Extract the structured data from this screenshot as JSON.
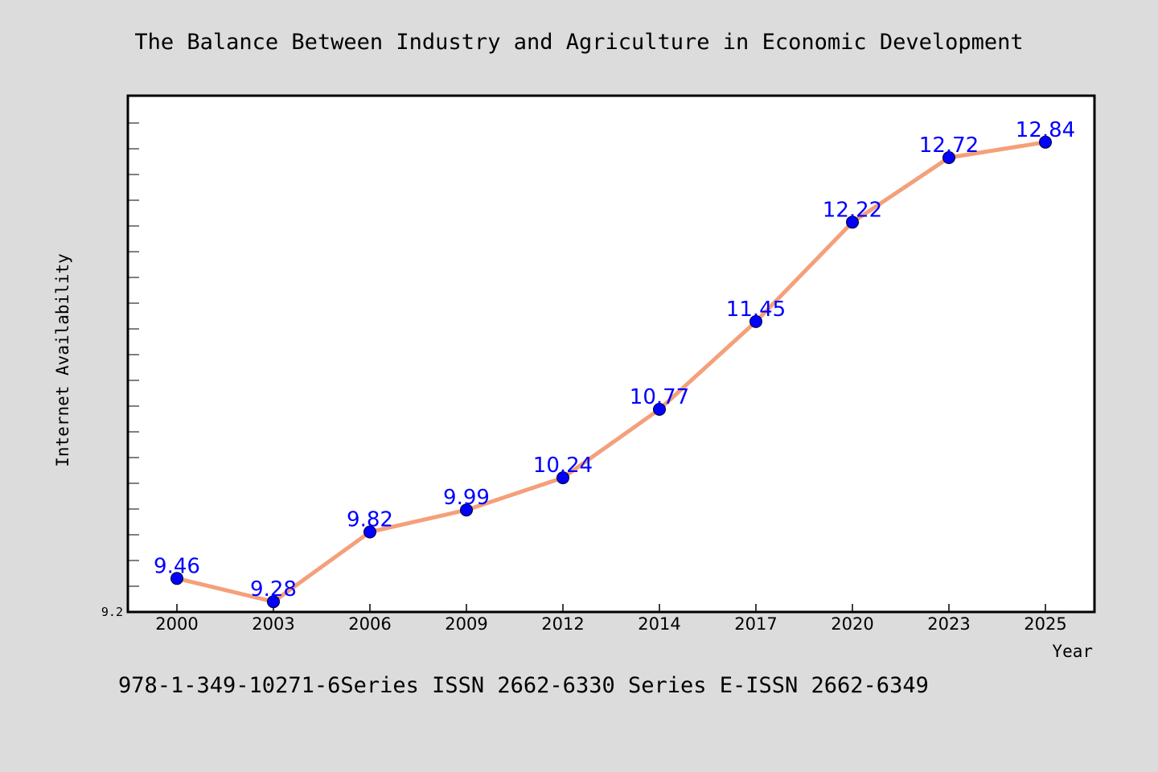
{
  "footer": "978-1-349-10271-6Series ISSN 2662-6330 Series E-ISSN 2662-6349",
  "colors": {
    "background": "#dcdcdc",
    "plot_background": "#ffffff",
    "line": "#f4a07a",
    "marker": "#0000ff",
    "data_label": "#0000ff"
  },
  "chart_data": {
    "type": "line",
    "title": "The Balance Between Industry and Agriculture in Economic Development",
    "xlabel": "Year",
    "ylabel": "Internet Availability",
    "categories": [
      "2000",
      "2003",
      "2006",
      "2009",
      "2012",
      "2014",
      "2017",
      "2020",
      "2023",
      "2025"
    ],
    "values": [
      9.46,
      9.28,
      9.82,
      9.99,
      10.24,
      10.77,
      11.45,
      12.22,
      12.72,
      12.84
    ],
    "data_labels": [
      "9.46",
      "9.28",
      "9.82",
      "9.99",
      "10.24",
      "10.77",
      "11.45",
      "12.22",
      "12.72",
      "12.84"
    ],
    "ytick_labels": [
      "9.2"
    ],
    "ylim": [
      9.2,
      13.2
    ],
    "grid": false,
    "legend": "none"
  }
}
